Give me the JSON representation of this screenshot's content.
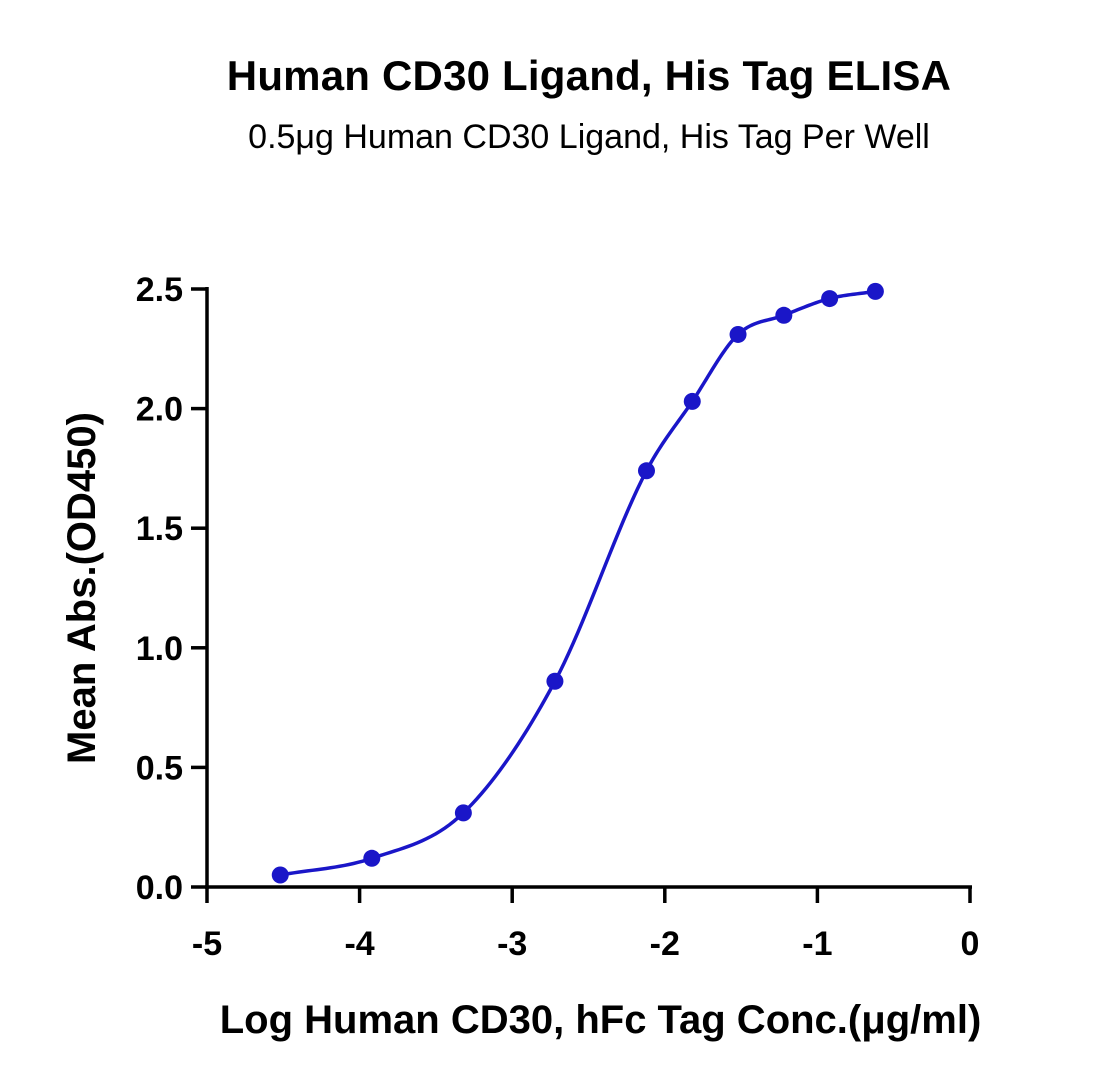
{
  "chart_data": {
    "type": "scatter",
    "title": "Human CD30 Ligand, His Tag ELISA",
    "subtitle": "0.5μg Human CD30 Ligand, His Tag Per Well",
    "xlabel": "Log Human CD30, hFc Tag Conc.(μg/ml)",
    "ylabel": "Mean Abs.(OD450)",
    "xlim": [
      -5,
      0
    ],
    "ylim": [
      0,
      2.5
    ],
    "xticks": [
      -5,
      -4,
      -3,
      -2,
      -1,
      0
    ],
    "yticks": [
      0.0,
      0.5,
      1.0,
      1.5,
      2.0,
      2.5
    ],
    "xtick_labels": [
      "-5",
      "-4",
      "-3",
      "-2",
      "-1",
      "0"
    ],
    "ytick_labels": [
      "0.0",
      "0.5",
      "1.0",
      "1.5",
      "2.0",
      "2.5"
    ],
    "grid": false,
    "series": [
      {
        "x": [
          -4.52,
          -3.92,
          -3.32,
          -2.72,
          -2.12,
          -1.82,
          -1.52,
          -1.22,
          -0.92,
          -0.62
        ],
        "y": [
          0.05,
          0.12,
          0.31,
          0.86,
          1.74,
          2.03,
          2.31,
          2.39,
          2.46,
          2.49
        ],
        "color": "#1a16c8",
        "fit": "4PL"
      }
    ]
  }
}
